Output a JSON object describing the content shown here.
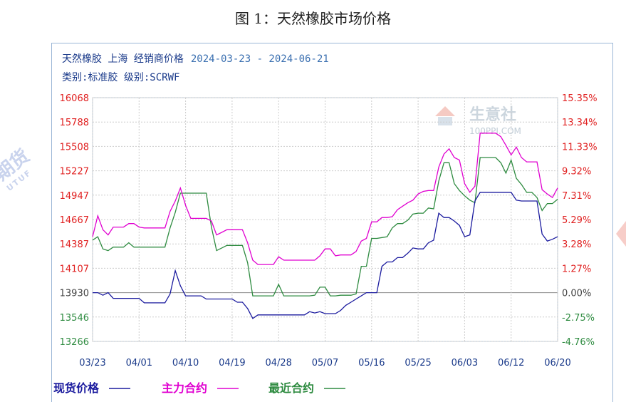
{
  "caption": "图 1：天然橡胶市场价格",
  "header": {
    "line1_prefix": "天然橡胶 上海 经销商价格",
    "line1_date": "2024-03-23 - 2024-06-21",
    "line2": "类别:标准胶 级别:SCRWF"
  },
  "watermark": {
    "brand": "生意社",
    "site": "100PPI.COM",
    "left_text": "期货",
    "left_sub": "UTUF"
  },
  "colors": {
    "spot": "#1a1a9e",
    "main": "#e000d0",
    "near": "#2e8b40",
    "left_axis": "#e02020",
    "left_axis_low": "#2e8b40",
    "right_axis_pos": "#e02020",
    "right_axis_neg": "#2e8b40",
    "grid": "#cccccc"
  },
  "chart_data": {
    "type": "line",
    "x_labels": [
      "03/23",
      "04/01",
      "04/10",
      "04/19",
      "04/28",
      "05/07",
      "05/16",
      "05/25",
      "06/03",
      "06/12",
      "06/20"
    ],
    "y_left_ticks": [
      16068,
      15788,
      15508,
      15227,
      14947,
      14667,
      14387,
      14107,
      13930,
      13546,
      13266
    ],
    "y_right_ticks": [
      "15.35%",
      "13.34%",
      "11.33%",
      "9.32%",
      "7.31%",
      "5.29%",
      "3.28%",
      "1.27%",
      "0.00%",
      "-2.75%",
      "-4.76%"
    ],
    "ylim": [
      13266,
      16068
    ],
    "x_range_days": [
      0,
      90
    ],
    "series": [
      {
        "name": "现货价格",
        "legend": "现货价格",
        "key": "spot",
        "points": [
          [
            0,
            13930
          ],
          [
            1,
            13930
          ],
          [
            2,
            13890
          ],
          [
            3,
            13930
          ],
          [
            4,
            13840
          ],
          [
            5,
            13840
          ],
          [
            6,
            13840
          ],
          [
            7,
            13840
          ],
          [
            8,
            13840
          ],
          [
            9,
            13840
          ],
          [
            10,
            13770
          ],
          [
            11,
            13770
          ],
          [
            12,
            13770
          ],
          [
            13,
            13770
          ],
          [
            14,
            13770
          ],
          [
            15,
            13910
          ],
          [
            16,
            14090
          ],
          [
            17,
            13980
          ],
          [
            18,
            13880
          ],
          [
            19,
            13880
          ],
          [
            20,
            13880
          ],
          [
            21,
            13880
          ],
          [
            22,
            13830
          ],
          [
            23,
            13830
          ],
          [
            24,
            13830
          ],
          [
            25,
            13830
          ],
          [
            26,
            13830
          ],
          [
            27,
            13830
          ],
          [
            28,
            13780
          ],
          [
            29,
            13780
          ],
          [
            30,
            13680
          ],
          [
            31,
            13530
          ],
          [
            32,
            13580
          ],
          [
            33,
            13580
          ],
          [
            34,
            13580
          ],
          [
            35,
            13580
          ],
          [
            36,
            13580
          ],
          [
            37,
            13580
          ],
          [
            38,
            13580
          ],
          [
            39,
            13580
          ],
          [
            40,
            13580
          ],
          [
            41,
            13580
          ],
          [
            42,
            13630
          ],
          [
            43,
            13610
          ],
          [
            44,
            13630
          ],
          [
            45,
            13600
          ],
          [
            46,
            13600
          ],
          [
            47,
            13600
          ],
          [
            48,
            13650
          ],
          [
            49,
            13730
          ],
          [
            50,
            13780
          ],
          [
            51,
            13830
          ],
          [
            52,
            13880
          ],
          [
            53,
            13930
          ],
          [
            54,
            13930
          ],
          [
            55,
            13930
          ],
          [
            56,
            14130
          ],
          [
            57,
            14180
          ],
          [
            58,
            14180
          ],
          [
            59,
            14230
          ],
          [
            60,
            14230
          ],
          [
            61,
            14280
          ],
          [
            62,
            14340
          ],
          [
            63,
            14330
          ],
          [
            64,
            14330
          ],
          [
            65,
            14400
          ],
          [
            66,
            14430
          ],
          [
            67,
            14740
          ],
          [
            68,
            14690
          ],
          [
            69,
            14690
          ],
          [
            70,
            14650
          ],
          [
            71,
            14600
          ],
          [
            72,
            14470
          ],
          [
            73,
            14490
          ],
          [
            74,
            14880
          ],
          [
            75,
            14980
          ],
          [
            76,
            14980
          ],
          [
            77,
            14980
          ],
          [
            78,
            14980
          ],
          [
            79,
            14980
          ],
          [
            80,
            14980
          ],
          [
            81,
            14980
          ],
          [
            82,
            14890
          ],
          [
            83,
            14880
          ],
          [
            84,
            14880
          ],
          [
            85,
            14880
          ],
          [
            86,
            14880
          ],
          [
            87,
            14500
          ],
          [
            88,
            14420
          ],
          [
            89,
            14440
          ],
          [
            90,
            14470
          ]
        ]
      },
      {
        "name": "主力合约",
        "legend": "主力合约",
        "key": "main",
        "points": [
          [
            0,
            14470
          ],
          [
            1,
            14710
          ],
          [
            2,
            14550
          ],
          [
            3,
            14490
          ],
          [
            4,
            14580
          ],
          [
            5,
            14580
          ],
          [
            6,
            14580
          ],
          [
            7,
            14620
          ],
          [
            8,
            14620
          ],
          [
            9,
            14580
          ],
          [
            10,
            14570
          ],
          [
            11,
            14570
          ],
          [
            12,
            14570
          ],
          [
            13,
            14570
          ],
          [
            14,
            14570
          ],
          [
            15,
            14760
          ],
          [
            16,
            14880
          ],
          [
            17,
            15030
          ],
          [
            18,
            14830
          ],
          [
            19,
            14680
          ],
          [
            20,
            14680
          ],
          [
            21,
            14680
          ],
          [
            22,
            14680
          ],
          [
            23,
            14650
          ],
          [
            24,
            14490
          ],
          [
            25,
            14520
          ],
          [
            26,
            14550
          ],
          [
            27,
            14550
          ],
          [
            28,
            14550
          ],
          [
            29,
            14550
          ],
          [
            30,
            14400
          ],
          [
            31,
            14200
          ],
          [
            32,
            14150
          ],
          [
            33,
            14150
          ],
          [
            34,
            14150
          ],
          [
            35,
            14150
          ],
          [
            36,
            14240
          ],
          [
            37,
            14200
          ],
          [
            38,
            14200
          ],
          [
            39,
            14200
          ],
          [
            40,
            14200
          ],
          [
            41,
            14200
          ],
          [
            42,
            14200
          ],
          [
            43,
            14200
          ],
          [
            44,
            14250
          ],
          [
            45,
            14330
          ],
          [
            46,
            14330
          ],
          [
            47,
            14250
          ],
          [
            48,
            14260
          ],
          [
            49,
            14260
          ],
          [
            50,
            14260
          ],
          [
            51,
            14300
          ],
          [
            52,
            14420
          ],
          [
            53,
            14450
          ],
          [
            54,
            14640
          ],
          [
            55,
            14640
          ],
          [
            56,
            14690
          ],
          [
            57,
            14690
          ],
          [
            58,
            14700
          ],
          [
            59,
            14780
          ],
          [
            60,
            14820
          ],
          [
            61,
            14860
          ],
          [
            62,
            14890
          ],
          [
            63,
            14960
          ],
          [
            64,
            14990
          ],
          [
            65,
            15000
          ],
          [
            66,
            15000
          ],
          [
            67,
            15270
          ],
          [
            68,
            15420
          ],
          [
            69,
            15480
          ],
          [
            70,
            15380
          ],
          [
            71,
            15350
          ],
          [
            72,
            15080
          ],
          [
            73,
            14980
          ],
          [
            74,
            15050
          ],
          [
            75,
            15660
          ],
          [
            76,
            15660
          ],
          [
            77,
            15660
          ],
          [
            78,
            15660
          ],
          [
            79,
            15620
          ],
          [
            80,
            15520
          ],
          [
            81,
            15410
          ],
          [
            82,
            15500
          ],
          [
            83,
            15380
          ],
          [
            84,
            15330
          ],
          [
            85,
            15330
          ],
          [
            86,
            15330
          ],
          [
            87,
            15010
          ],
          [
            88,
            14960
          ],
          [
            89,
            14920
          ],
          [
            90,
            15030
          ]
        ]
      },
      {
        "name": "最近合约",
        "legend": "最近合约",
        "key": "near",
        "points": [
          [
            0,
            14430
          ],
          [
            1,
            14470
          ],
          [
            2,
            14330
          ],
          [
            3,
            14310
          ],
          [
            4,
            14350
          ],
          [
            5,
            14350
          ],
          [
            6,
            14350
          ],
          [
            7,
            14400
          ],
          [
            8,
            14350
          ],
          [
            9,
            14350
          ],
          [
            10,
            14350
          ],
          [
            11,
            14350
          ],
          [
            12,
            14350
          ],
          [
            13,
            14350
          ],
          [
            14,
            14350
          ],
          [
            15,
            14570
          ],
          [
            16,
            14750
          ],
          [
            17,
            14970
          ],
          [
            18,
            14970
          ],
          [
            19,
            14970
          ],
          [
            20,
            14970
          ],
          [
            21,
            14970
          ],
          [
            22,
            14970
          ],
          [
            23,
            14580
          ],
          [
            24,
            14310
          ],
          [
            25,
            14340
          ],
          [
            26,
            14370
          ],
          [
            27,
            14370
          ],
          [
            28,
            14370
          ],
          [
            29,
            14370
          ],
          [
            30,
            14170
          ],
          [
            31,
            13880
          ],
          [
            32,
            13880
          ],
          [
            33,
            13880
          ],
          [
            34,
            13880
          ],
          [
            35,
            13880
          ],
          [
            36,
            13990
          ],
          [
            37,
            13880
          ],
          [
            38,
            13880
          ],
          [
            39,
            13880
          ],
          [
            40,
            13880
          ],
          [
            41,
            13880
          ],
          [
            42,
            13880
          ],
          [
            43,
            13890
          ],
          [
            44,
            13970
          ],
          [
            45,
            13970
          ],
          [
            46,
            13880
          ],
          [
            47,
            13880
          ],
          [
            48,
            13890
          ],
          [
            49,
            13890
          ],
          [
            50,
            13890
          ],
          [
            51,
            13910
          ],
          [
            52,
            14130
          ],
          [
            53,
            14130
          ],
          [
            54,
            14450
          ],
          [
            55,
            14450
          ],
          [
            56,
            14460
          ],
          [
            57,
            14470
          ],
          [
            58,
            14570
          ],
          [
            59,
            14620
          ],
          [
            60,
            14620
          ],
          [
            61,
            14660
          ],
          [
            62,
            14730
          ],
          [
            63,
            14740
          ],
          [
            64,
            14740
          ],
          [
            65,
            14800
          ],
          [
            66,
            14790
          ],
          [
            67,
            15110
          ],
          [
            68,
            15320
          ],
          [
            69,
            15320
          ],
          [
            70,
            15080
          ],
          [
            71,
            15000
          ],
          [
            72,
            14940
          ],
          [
            73,
            14890
          ],
          [
            74,
            14860
          ],
          [
            75,
            15380
          ],
          [
            76,
            15380
          ],
          [
            77,
            15380
          ],
          [
            78,
            15380
          ],
          [
            79,
            15320
          ],
          [
            80,
            15200
          ],
          [
            81,
            15350
          ],
          [
            82,
            15140
          ],
          [
            83,
            15070
          ],
          [
            84,
            14980
          ],
          [
            85,
            14980
          ],
          [
            86,
            14920
          ],
          [
            87,
            14770
          ],
          [
            88,
            14850
          ],
          [
            89,
            14850
          ],
          [
            90,
            14900
          ]
        ]
      }
    ]
  }
}
